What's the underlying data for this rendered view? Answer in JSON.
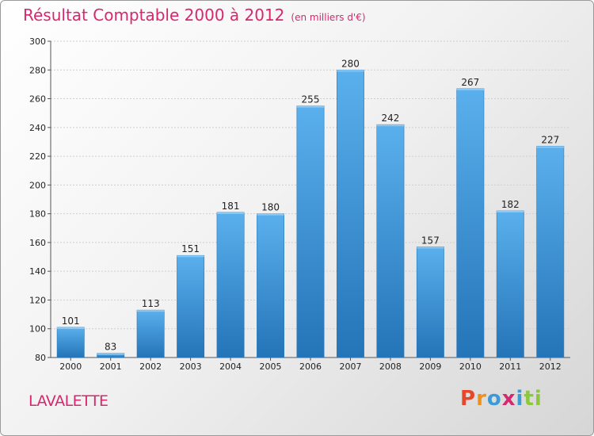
{
  "chart_data": {
    "type": "bar",
    "title": "Résultat Comptable 2000 à 2012",
    "subtitle": "(en milliers d'€)",
    "categories": [
      "2000",
      "2001",
      "2002",
      "2003",
      "2004",
      "2005",
      "2006",
      "2007",
      "2008",
      "2009",
      "2010",
      "2011",
      "2012"
    ],
    "values": [
      101,
      83,
      113,
      151,
      181,
      180,
      255,
      280,
      242,
      157,
      267,
      182,
      227
    ],
    "xlabel": "",
    "ylabel": "",
    "ylim": [
      80,
      300
    ],
    "yticks": [
      80,
      100,
      120,
      140,
      160,
      180,
      200,
      220,
      240,
      260,
      280,
      300
    ],
    "grid": true,
    "bar_color": "#4aa3e3"
  },
  "footer": {
    "commune": "LAVALETTE",
    "logo_text": "Proxiti",
    "logo_colors": [
      "#e8462b",
      "#f18f1c",
      "#3c9ad6",
      "#d6286e",
      "#3c9ad6",
      "#8dc63f",
      "#8dc63f"
    ]
  }
}
